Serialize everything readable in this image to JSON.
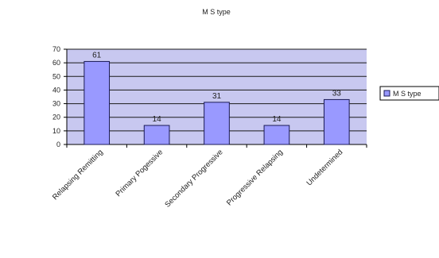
{
  "chart_data": {
    "type": "bar",
    "title": "M S type",
    "xlabel": "",
    "ylabel": "",
    "categories": [
      "Relapsing Remitting",
      "Primary Pogessive",
      "Secondary Progressive",
      "Progressive Relapsing",
      "Undetermined"
    ],
    "series": [
      {
        "name": "M S type",
        "values": [
          61,
          14,
          31,
          14,
          33
        ]
      }
    ],
    "ylim": [
      0,
      70
    ],
    "yticks": [
      0,
      10,
      20,
      30,
      40,
      50,
      60,
      70
    ],
    "grid": true,
    "legend": "right",
    "colors": {
      "bar_fill": "#9999ff",
      "bar_stroke": "#1a1a55",
      "plot_bg": "#c8c8f0",
      "gridline": "#1a1a1a",
      "axis": "#000000"
    }
  }
}
